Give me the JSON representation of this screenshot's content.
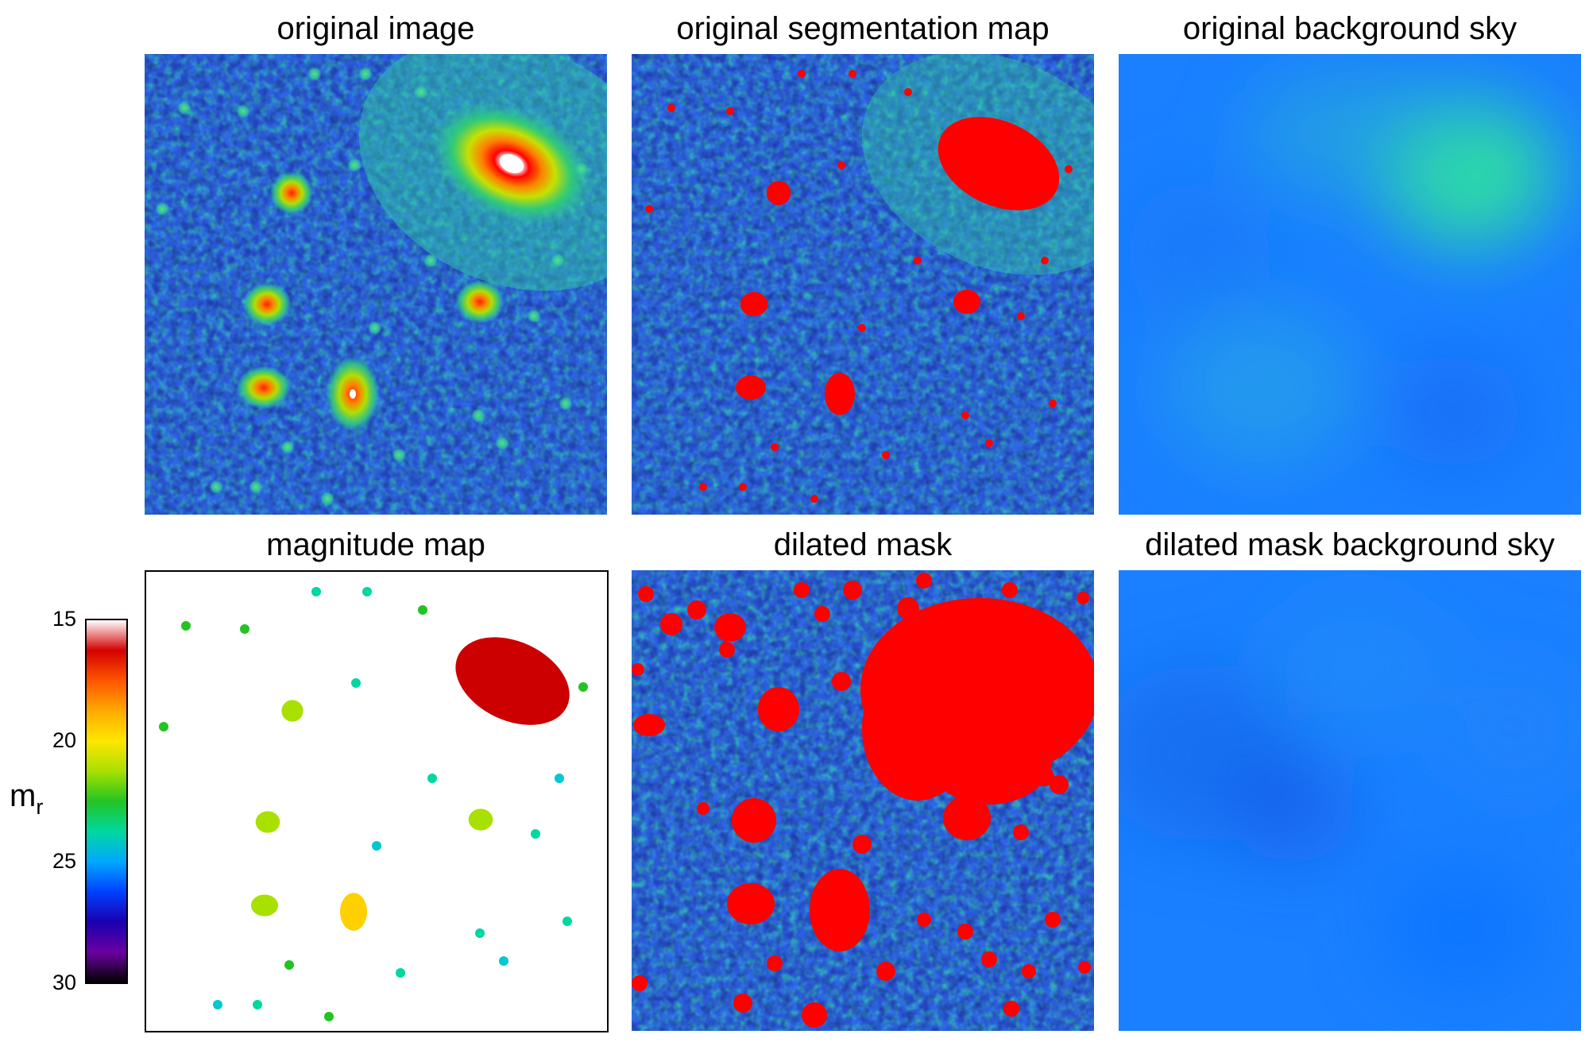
{
  "panels": {
    "original_image": "original image",
    "segmentation": "original segmentation map",
    "background_sky": "original background sky",
    "magnitude_map": "magnitude map",
    "dilated_mask": "dilated mask",
    "dilated_sky": "dilated mask background sky"
  },
  "colorbar": {
    "label_main": "m",
    "label_sub": "r",
    "ticks": [
      "15",
      "20",
      "25",
      "30"
    ],
    "tick_values": [
      15,
      20,
      25,
      30
    ],
    "range": [
      15,
      30
    ],
    "colors": [
      "#ffffff",
      "#d40000",
      "#ff5500",
      "#ffaa00",
      "#ffe600",
      "#a8e000",
      "#22c422",
      "#00d8a0",
      "#00a8ff",
      "#0040ff",
      "#1a00b0",
      "#6a00a0",
      "#000000"
    ]
  },
  "palette": {
    "noise_dark": "#1a2a9a",
    "noise_blue": "#2a50e0",
    "noise_light": "#3a90f0",
    "noise_green": "#30d0a0",
    "mask_red": "#ff0000",
    "sky_blue": "#1a80ff",
    "sky_green": "#30e0a0",
    "magnitude_galaxy": "#cc0000",
    "magnitude_yellow": "#ffd000",
    "magnitude_lime": "#a8e000"
  }
}
